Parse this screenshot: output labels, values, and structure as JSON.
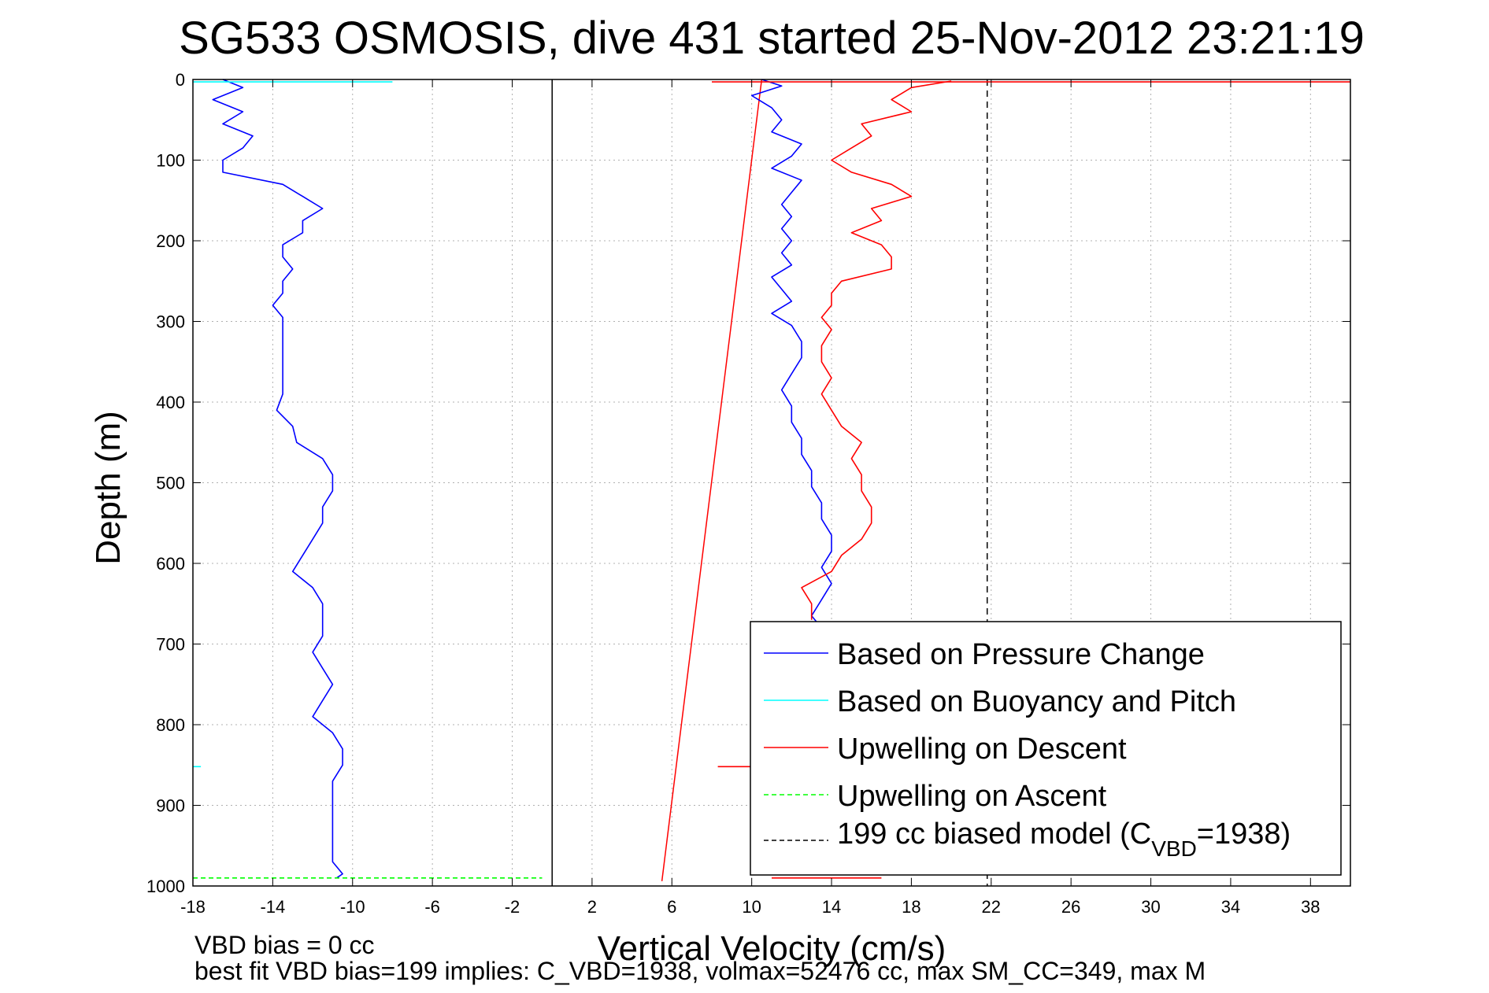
{
  "chart_data": {
    "type": "line",
    "title": "SG533 OSMOSIS, dive 431 started 25-Nov-2012 23:21:19",
    "xlabel": "Vertical Velocity (cm/s)",
    "ylabel": "Depth (m)",
    "xlim": [
      -18,
      40
    ],
    "ylim": [
      0,
      1000
    ],
    "y_reversed": true,
    "grid": true,
    "x_ticks": [
      "-18",
      "-14",
      "-10",
      "-6",
      "-2",
      "2",
      "6",
      "10",
      "14",
      "18",
      "22",
      "26",
      "30",
      "34",
      "38"
    ],
    "y_ticks": [
      "0",
      "100",
      "200",
      "300",
      "400",
      "500",
      "600",
      "700",
      "800",
      "900",
      "1000"
    ],
    "legend_placement": "bottom-right",
    "legend": [
      {
        "label": "Based on Pressure Change",
        "color": "#0000ff",
        "style": "solid"
      },
      {
        "label": "Based on Buoyancy and Pitch",
        "color": "#00ffff",
        "style": "solid"
      },
      {
        "label": "Upwelling on Descent",
        "color": "#ff0000",
        "style": "solid"
      },
      {
        "label": "Upwelling on Ascent",
        "color": "#00ff00",
        "style": "dashed"
      },
      {
        "label_prefix": "199 cc biased model (C",
        "label_sub": "VBD",
        "label_suffix": "=1938)",
        "color": "#000000",
        "style": "dashed"
      }
    ],
    "series": [
      {
        "name": "Based on Pressure Change",
        "color": "#0000ff",
        "segments": [
          {
            "depth": [
              0,
              10,
              25,
              40,
              55,
              70,
              85,
              100,
              115,
              130,
              145,
              160,
              175,
              190,
              205,
              220,
              235,
              250,
              265,
              280,
              295,
              310,
              330,
              350,
              370,
              390,
              410,
              430,
              450,
              470,
              490,
              510,
              530,
              550,
              570,
              590,
              610,
              630,
              650,
              670,
              690,
              710,
              730,
              750,
              770,
              790,
              810,
              830,
              850,
              870,
              890,
              910,
              930,
              950,
              970,
              985,
              990
            ],
            "velocity": [
              -16.5,
              -15.5,
              -17,
              -15.5,
              -16.5,
              -15,
              -15.5,
              -16.5,
              -16.5,
              -13.5,
              -12.5,
              -11.5,
              -12.5,
              -12.5,
              -13.5,
              -13.5,
              -13,
              -13.5,
              -13.5,
              -14,
              -13.5,
              -13.5,
              -13.5,
              -13.5,
              -13.5,
              -13.5,
              -13.8,
              -13,
              -12.8,
              -11.5,
              -11,
              -11,
              -11.5,
              -11.5,
              -12,
              -12.5,
              -13,
              -12,
              -11.5,
              -11.5,
              -11.5,
              -12,
              -11.5,
              -11,
              -11.5,
              -12,
              -11,
              -10.5,
              -10.5,
              -11,
              -11,
              -11,
              -11,
              -11,
              -11,
              -10.5,
              -10.8
            ]
          },
          {
            "depth": [
              0,
              8,
              20,
              35,
              50,
              65,
              80,
              95,
              110,
              125,
              140,
              155,
              170,
              185,
              200,
              215,
              230,
              245,
              260,
              275,
              290,
              305,
              325,
              345,
              365,
              385,
              405,
              425,
              445,
              465,
              485,
              505,
              525,
              545,
              565,
              585,
              605,
              625,
              645,
              665,
              680,
              690
            ],
            "velocity": [
              10.5,
              11.5,
              10,
              11,
              11.5,
              11,
              12.5,
              12,
              11,
              12.5,
              12,
              11.5,
              12,
              11.5,
              12,
              11.5,
              12,
              11,
              11.5,
              12,
              11,
              12,
              12.5,
              12.5,
              12,
              11.5,
              12,
              12,
              12.5,
              12.5,
              13,
              13,
              13.5,
              13.5,
              14,
              14,
              13.5,
              14,
              13.5,
              13,
              13.5,
              13
            ]
          }
        ]
      },
      {
        "name": "Based on Buoyancy and Pitch",
        "color": "#00ffff",
        "segments": [
          {
            "depth": [
              3,
              3
            ],
            "velocity": [
              -18,
              -8
            ]
          },
          {
            "depth": [
              852,
              852
            ],
            "velocity": [
              -18,
              -17.6
            ]
          }
        ]
      },
      {
        "name": "Upwelling on Descent",
        "color": "#ff0000",
        "segments": [
          {
            "depth": [
              2,
              10,
              25,
              40,
              55,
              70,
              85,
              100,
              115,
              130,
              145,
              160,
              175,
              190,
              205,
              220,
              235,
              250,
              265,
              280,
              295,
              310,
              330,
              350,
              370,
              390,
              410,
              430,
              450,
              470,
              490,
              510,
              530,
              550,
              570,
              590,
              610,
              630,
              650,
              670
            ],
            "velocity": [
              20,
              18,
              17,
              18,
              15.5,
              16,
              15,
              14,
              15,
              17,
              18,
              16,
              16.5,
              15,
              16.5,
              17,
              17,
              14.5,
              14,
              14,
              13.5,
              14,
              13.5,
              13.5,
              14,
              13.5,
              14,
              14.5,
              15.5,
              15,
              15.5,
              15.5,
              16,
              16,
              15.5,
              14.5,
              14,
              12.5,
              13,
              13
            ]
          },
          {
            "depth": [
              3,
              3
            ],
            "velocity": [
              8,
              40
            ]
          },
          {
            "depth": [
              852,
              852
            ],
            "velocity": [
              8.3,
              10
            ]
          },
          {
            "depth": [
              990,
              990
            ],
            "velocity": [
              11,
              16.5
            ]
          }
        ]
      },
      {
        "name": "Upwelling on Ascent",
        "color": "#00ff00",
        "segments": [
          {
            "depth": [
              990,
              990
            ],
            "velocity": [
              -18,
              -0.5
            ]
          }
        ]
      }
    ],
    "reference_lines": [
      {
        "kind": "model_fit",
        "color": "#ff0000",
        "depth": [
          0,
          994
        ],
        "velocity": [
          10.5,
          5.5
        ]
      },
      {
        "kind": "biased_model",
        "color": "#000000",
        "dashed": true,
        "depth": [
          0,
          1000
        ],
        "velocity": [
          21.8,
          21.8
        ]
      },
      {
        "kind": "zero",
        "color": "#000000",
        "depth": [
          0,
          1000
        ],
        "velocity": [
          0,
          0
        ]
      }
    ]
  },
  "footer": {
    "line1": "VBD bias = 0 cc",
    "line2": "best fit VBD bias=199 implies: C_VBD=1938, volmax=52476 cc, max SM_CC=349, max M"
  }
}
